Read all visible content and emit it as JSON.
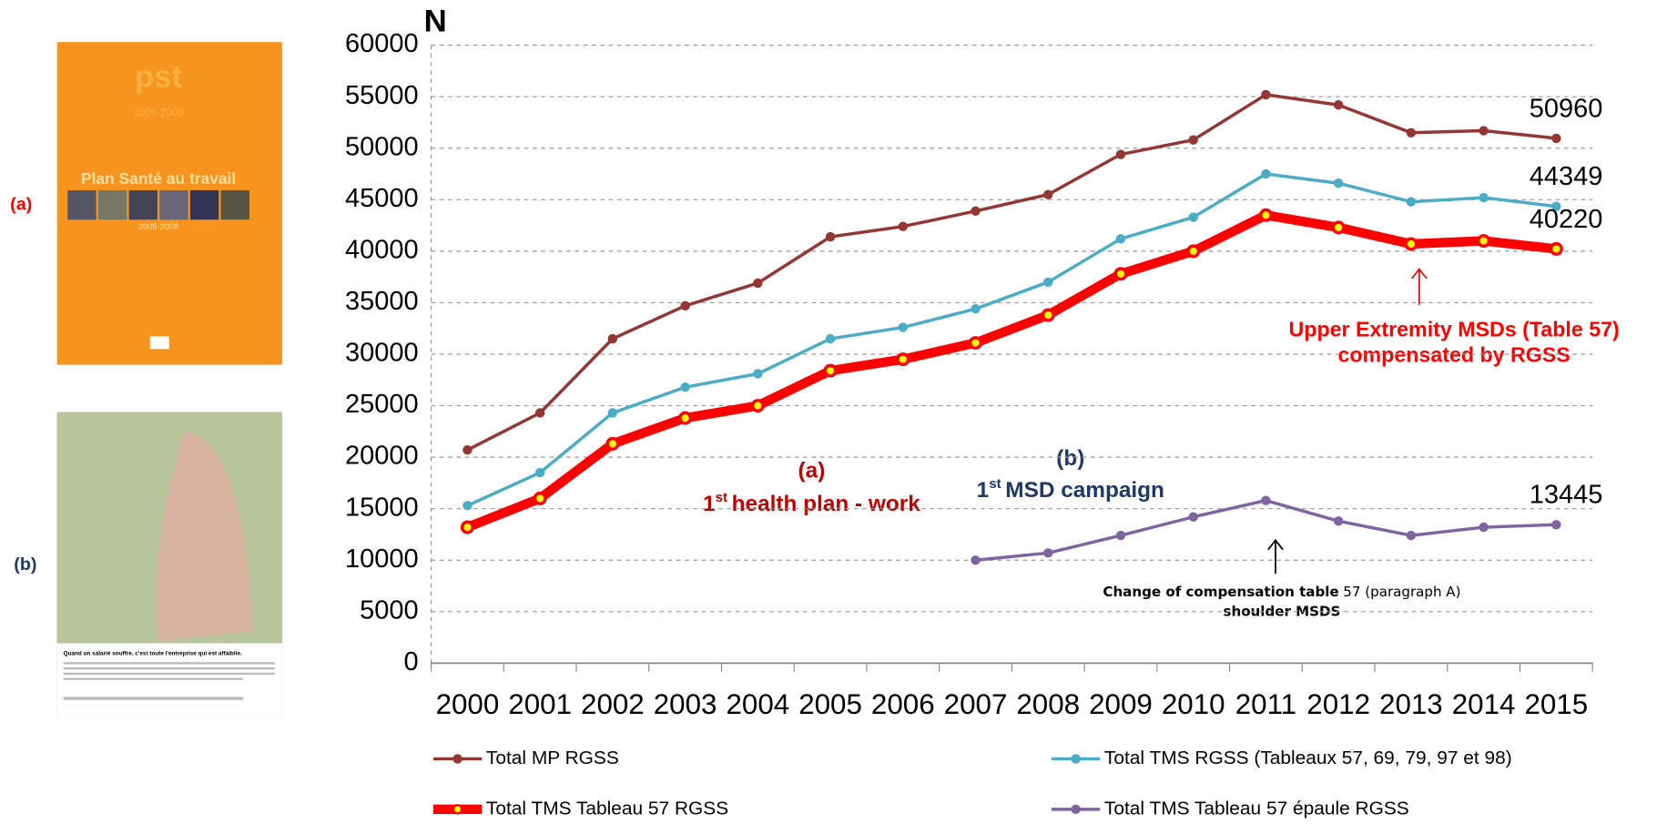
{
  "chart_data": {
    "type": "line",
    "ylabel": "N",
    "categories": [
      "2000",
      "2001",
      "2002",
      "2003",
      "2004",
      "2005",
      "2006",
      "2007",
      "2008",
      "2009",
      "2010",
      "2011",
      "2012",
      "2013",
      "2014",
      "2015"
    ],
    "ylim": [
      0,
      60000
    ],
    "yticks": [
      0,
      5000,
      10000,
      15000,
      20000,
      25000,
      30000,
      35000,
      40000,
      45000,
      50000,
      55000,
      60000
    ],
    "grid": true,
    "series": [
      {
        "name": "Total MP RGSS",
        "color": "#943634",
        "width": 3,
        "values": [
          20700,
          24300,
          31500,
          34700,
          36900,
          41400,
          42400,
          43900,
          45500,
          49400,
          50800,
          55200,
          54200,
          51500,
          51700,
          50960
        ]
      },
      {
        "name": "Total TMS RGSS (Tableaux 57, 69, 79, 97 et 98)",
        "color": "#4bacc6",
        "width": 3,
        "values": [
          15300,
          18500,
          24300,
          26800,
          28100,
          31500,
          32600,
          34400,
          37000,
          41200,
          43300,
          47500,
          46600,
          44800,
          45200,
          44349
        ]
      },
      {
        "name": "Total TMS Tableau 57 RGSS",
        "color": "#ff0000",
        "width": 9,
        "values": [
          13200,
          16000,
          21300,
          23800,
          25000,
          28400,
          29500,
          31100,
          33800,
          37800,
          40000,
          43500,
          42300,
          40700,
          41000,
          40220
        ]
      },
      {
        "name": "Total TMS Tableau 57 épaule RGSS",
        "color": "#8064a2",
        "width": 3,
        "values": [
          null,
          null,
          null,
          null,
          null,
          null,
          null,
          10000,
          10700,
          12400,
          14200,
          15800,
          13800,
          12400,
          13200,
          13445
        ]
      }
    ],
    "annotations": {
      "a_tag": "(a)",
      "a_ord": "1",
      "a_sup": "st",
      "a_text": "health plan - work",
      "b_tag": "(b)",
      "b_ord": "1",
      "b_sup": "st",
      "b_text": "MSD campaign",
      "ue_line1": "Upper Extremity MSDs (Table 57)",
      "ue_line2": "compensated by RGSS",
      "ch_bold": "Change of compensation table",
      "ch_norm": "57 (paragraph A)",
      "ch_line2": "shoulder MSDS"
    }
  },
  "side_images": {
    "a_label": "(a)",
    "b_label": "(b)",
    "poster_a_logo": "pst",
    "poster_a_years": "2005 2009",
    "poster_a_title": "Plan Santé au travail",
    "poster_a_sub": "2005-2009",
    "poster_b_text": "Quand un salarié souffre, c'est toute l'entreprise qui est affaiblie."
  }
}
